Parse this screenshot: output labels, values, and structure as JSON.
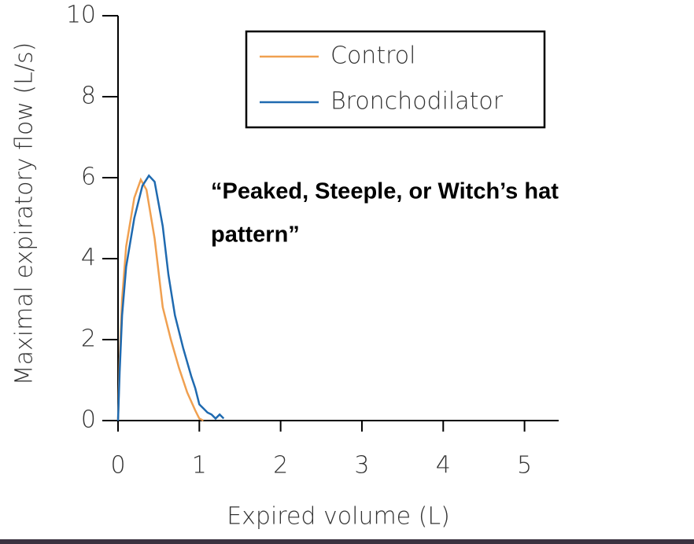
{
  "chart_data": {
    "type": "line",
    "xlabel": "Expired volume (L)",
    "ylabel": "Maximal expiratory flow (L/s)",
    "annotation": [
      "“Peaked, Steeple, or Witch’s hat",
      "pattern”"
    ],
    "xlim": [
      0,
      5.42
    ],
    "xticks": [
      0,
      1,
      2,
      3,
      4,
      5
    ],
    "ylim": [
      0,
      10
    ],
    "yticks": [
      0,
      2,
      4,
      6,
      8,
      10
    ],
    "legend": "upper right",
    "series": [
      {
        "name": "Control",
        "color": "#f0a050",
        "x": [
          0,
          0.02,
          0.05,
          0.1,
          0.2,
          0.28,
          0.35,
          0.45,
          0.55,
          0.65,
          0.75,
          0.85,
          0.95,
          1.0,
          1.05
        ],
        "values": [
          0,
          1.5,
          3,
          4.3,
          5.5,
          5.95,
          5.7,
          4.5,
          2.8,
          2,
          1.3,
          0.7,
          0.25,
          0.05,
          0
        ]
      },
      {
        "name": "Bronchodilator",
        "color": "#1f6ab0",
        "x": [
          0,
          0.02,
          0.05,
          0.1,
          0.2,
          0.3,
          0.38,
          0.45,
          0.55,
          0.62,
          0.7,
          0.8,
          0.9,
          0.95,
          1.0,
          1.05,
          1.1,
          1.15,
          1.2,
          1.25,
          1.3
        ],
        "values": [
          0,
          1.2,
          2.6,
          3.8,
          5,
          5.8,
          6.05,
          5.9,
          4.8,
          3.6,
          2.6,
          1.8,
          1.1,
          0.8,
          0.4,
          0.3,
          0.2,
          0.15,
          0.05,
          0.15,
          0.05
        ]
      }
    ]
  }
}
